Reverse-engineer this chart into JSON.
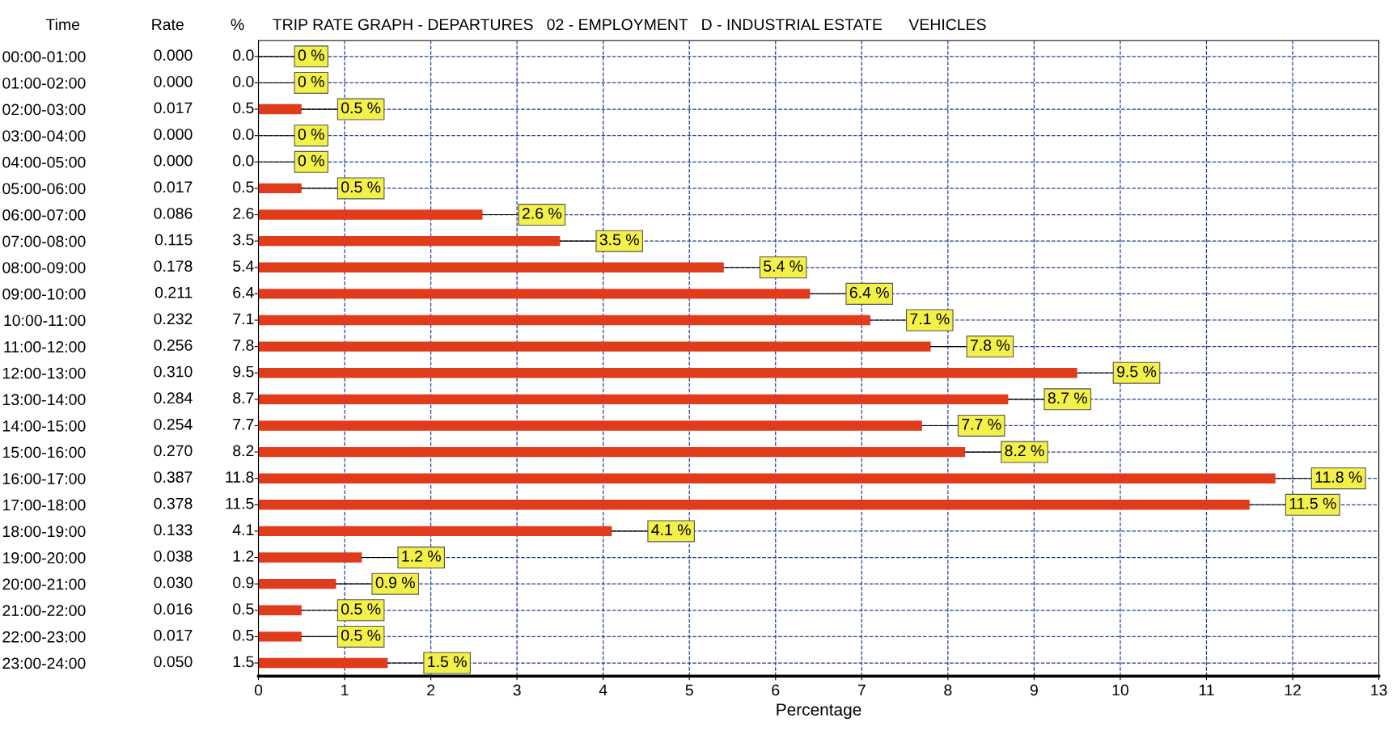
{
  "chart_data": {
    "type": "bar",
    "orientation": "horizontal",
    "title": "TRIP RATE GRAPH - DEPARTURES   02 - EMPLOYMENT   D - INDUSTRIAL ESTATE      VEHICLES",
    "xlabel": "Percentage",
    "categories": [
      "00:00-01:00",
      "01:00-02:00",
      "02:00-03:00",
      "03:00-04:00",
      "04:00-05:00",
      "05:00-06:00",
      "06:00-07:00",
      "07:00-08:00",
      "08:00-09:00",
      "09:00-10:00",
      "10:00-11:00",
      "11:00-12:00",
      "12:00-13:00",
      "13:00-14:00",
      "14:00-15:00",
      "15:00-16:00",
      "16:00-17:00",
      "17:00-18:00",
      "18:00-19:00",
      "19:00-20:00",
      "20:00-21:00",
      "21:00-22:00",
      "22:00-23:00",
      "23:00-24:00"
    ],
    "values": [
      0,
      0,
      0.5,
      0,
      0,
      0.5,
      2.6,
      3.5,
      5.4,
      6.4,
      7.1,
      7.8,
      9.5,
      8.7,
      7.7,
      8.2,
      11.8,
      11.5,
      4.1,
      1.2,
      0.9,
      0.5,
      0.5,
      1.5
    ],
    "value_labels": [
      "0 %",
      "0 %",
      "0.5 %",
      "0 %",
      "0 %",
      "0.5 %",
      "2.6 %",
      "3.5 %",
      "5.4 %",
      "6.4 %",
      "7.1 %",
      "7.8 %",
      "9.5 %",
      "8.7 %",
      "7.7 %",
      "8.2 %",
      "11.8 %",
      "11.5 %",
      "4.1 %",
      "1.2 %",
      "0.9 %",
      "0.5 %",
      "0.5 %",
      "1.5 %"
    ],
    "color": "#e03c1c",
    "xlim": [
      0,
      13
    ],
    "xticks": [
      0,
      1,
      2,
      3,
      4,
      5,
      6,
      7,
      8,
      9,
      10,
      11,
      12,
      13
    ],
    "grid": true,
    "line_style": "dashed",
    "annotations": [
      "Time",
      "Rate",
      "%",
      "0.000",
      "0.000",
      "0.017",
      "0.000",
      "0.000",
      "0.017",
      "0.086",
      "0.115",
      "0.178",
      "0.211",
      "0.232",
      "0.256",
      "0.310",
      "0.284",
      "0.254",
      "0.270",
      "0.387",
      "0.378",
      "0.133",
      "0.038",
      "0.030",
      "0.016",
      "0.017",
      "0.050",
      "0.0",
      "0.0",
      "0.5",
      "0.0",
      "0.0",
      "0.5",
      "2.6",
      "3.5",
      "5.4",
      "6.4",
      "7.1",
      "7.8",
      "9.5",
      "8.7",
      "7.7",
      "8.2",
      "11.8",
      "11.5",
      "4.1",
      "1.2",
      "0.9",
      "0.5",
      "0.5",
      "1.5"
    ]
  }
}
